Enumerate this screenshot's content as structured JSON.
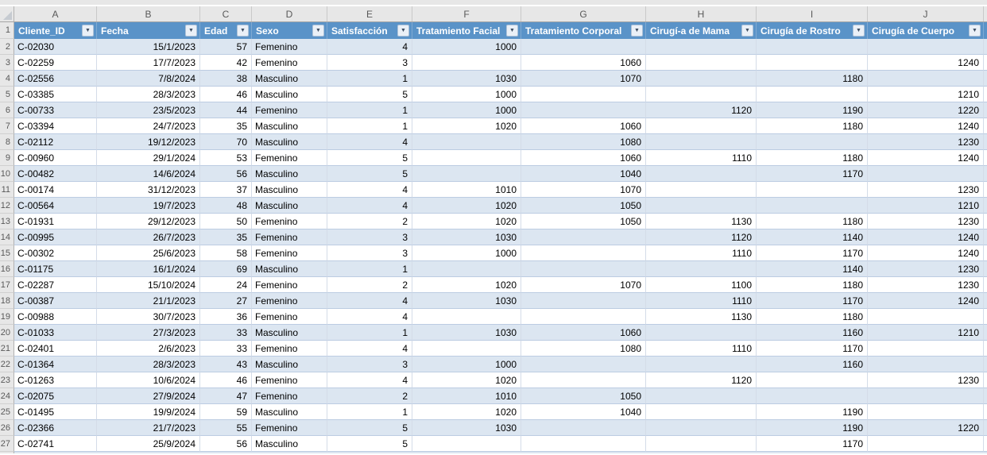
{
  "colors": {
    "header_fill": "#5a93c8",
    "band_fill": "#dce6f1",
    "chrome_gray": "#e7e7e7",
    "header_text": "#ffffff",
    "cell_text": "#000000"
  },
  "icons": {
    "filter_dropdown": "▼",
    "select_all_corner": "triangle"
  },
  "sheet": {
    "header_row_number": "1",
    "gutter_width": 18,
    "filler_width": 4,
    "columns": [
      {
        "letter": "A",
        "header": "Cliente_ID",
        "width": 104,
        "align": "left"
      },
      {
        "letter": "B",
        "header": "Fecha",
        "width": 130,
        "align": "right"
      },
      {
        "letter": "C",
        "header": "Edad",
        "width": 65,
        "align": "right"
      },
      {
        "letter": "D",
        "header": "Sexo",
        "width": 95,
        "align": "left"
      },
      {
        "letter": "E",
        "header": "Satisfacción",
        "width": 107,
        "align": "right"
      },
      {
        "letter": "F",
        "header": "Tratamiento Facial",
        "width": 137,
        "align": "right"
      },
      {
        "letter": "G",
        "header": "Tratamiento Corporal",
        "width": 157,
        "align": "right"
      },
      {
        "letter": "H",
        "header": "Cirugí-a de Mama",
        "width": 139,
        "align": "right"
      },
      {
        "letter": "I",
        "header": "Cirugía de Rostro",
        "width": 140,
        "align": "right"
      },
      {
        "letter": "J",
        "header": "Cirugía de Cuerpo",
        "width": 146,
        "align": "right"
      }
    ],
    "rows": [
      {
        "n": 2,
        "c": [
          "C-02030",
          "15/1/2023",
          "57",
          "Femenino",
          "4",
          "1000",
          "",
          "",
          "",
          ""
        ]
      },
      {
        "n": 3,
        "c": [
          "C-02259",
          "17/7/2023",
          "42",
          "Femenino",
          "3",
          "",
          "1060",
          "",
          "",
          "1240"
        ]
      },
      {
        "n": 4,
        "c": [
          "C-02556",
          "7/8/2024",
          "38",
          "Masculino",
          "1",
          "1030",
          "1070",
          "",
          "1180",
          ""
        ]
      },
      {
        "n": 5,
        "c": [
          "C-03385",
          "28/3/2023",
          "46",
          "Masculino",
          "5",
          "1000",
          "",
          "",
          "",
          "1210"
        ]
      },
      {
        "n": 6,
        "c": [
          "C-00733",
          "23/5/2023",
          "44",
          "Femenino",
          "1",
          "1000",
          "",
          "1120",
          "1190",
          "1220"
        ]
      },
      {
        "n": 7,
        "c": [
          "C-03394",
          "24/7/2023",
          "35",
          "Masculino",
          "1",
          "1020",
          "1060",
          "",
          "1180",
          "1240"
        ]
      },
      {
        "n": 8,
        "c": [
          "C-02112",
          "19/12/2023",
          "70",
          "Masculino",
          "4",
          "",
          "1080",
          "",
          "",
          "1230"
        ]
      },
      {
        "n": 9,
        "c": [
          "C-00960",
          "29/1/2024",
          "53",
          "Femenino",
          "5",
          "",
          "1060",
          "1110",
          "1180",
          "1240"
        ]
      },
      {
        "n": 10,
        "c": [
          "C-00482",
          "14/6/2024",
          "56",
          "Masculino",
          "5",
          "",
          "1040",
          "",
          "1170",
          ""
        ]
      },
      {
        "n": 11,
        "c": [
          "C-00174",
          "31/12/2023",
          "37",
          "Masculino",
          "4",
          "1010",
          "1070",
          "",
          "",
          "1230"
        ]
      },
      {
        "n": 12,
        "c": [
          "C-00564",
          "19/7/2023",
          "48",
          "Masculino",
          "4",
          "1020",
          "1050",
          "",
          "",
          "1210"
        ]
      },
      {
        "n": 13,
        "c": [
          "C-01931",
          "29/12/2023",
          "50",
          "Femenino",
          "2",
          "1020",
          "1050",
          "1130",
          "1180",
          "1230"
        ]
      },
      {
        "n": 14,
        "c": [
          "C-00995",
          "26/7/2023",
          "35",
          "Femenino",
          "3",
          "1030",
          "",
          "1120",
          "1140",
          "1240"
        ]
      },
      {
        "n": 15,
        "c": [
          "C-00302",
          "25/6/2023",
          "58",
          "Femenino",
          "3",
          "1000",
          "",
          "1110",
          "1170",
          "1240"
        ]
      },
      {
        "n": 16,
        "c": [
          "C-01175",
          "16/1/2024",
          "69",
          "Masculino",
          "1",
          "",
          "",
          "",
          "1140",
          "1230"
        ]
      },
      {
        "n": 17,
        "c": [
          "C-02287",
          "15/10/2024",
          "24",
          "Femenino",
          "2",
          "1020",
          "1070",
          "1100",
          "1180",
          "1230"
        ]
      },
      {
        "n": 18,
        "c": [
          "C-00387",
          "21/1/2023",
          "27",
          "Femenino",
          "4",
          "1030",
          "",
          "1110",
          "1170",
          "1240"
        ]
      },
      {
        "n": 19,
        "c": [
          "C-00988",
          "30/7/2023",
          "36",
          "Femenino",
          "4",
          "",
          "",
          "1130",
          "1180",
          ""
        ]
      },
      {
        "n": 20,
        "c": [
          "C-01033",
          "27/3/2023",
          "33",
          "Masculino",
          "1",
          "1030",
          "1060",
          "",
          "1160",
          "1210"
        ]
      },
      {
        "n": 21,
        "c": [
          "C-02401",
          "2/6/2023",
          "33",
          "Femenino",
          "4",
          "",
          "1080",
          "1110",
          "1170",
          ""
        ]
      },
      {
        "n": 22,
        "c": [
          "C-01364",
          "28/3/2023",
          "43",
          "Masculino",
          "3",
          "1000",
          "",
          "",
          "1160",
          ""
        ]
      },
      {
        "n": 23,
        "c": [
          "C-01263",
          "10/6/2024",
          "46",
          "Femenino",
          "4",
          "1020",
          "",
          "1120",
          "",
          "1230"
        ]
      },
      {
        "n": 24,
        "c": [
          "C-02075",
          "27/9/2024",
          "47",
          "Femenino",
          "2",
          "1010",
          "1050",
          "",
          "",
          ""
        ]
      },
      {
        "n": 25,
        "c": [
          "C-01495",
          "19/9/2024",
          "59",
          "Masculino",
          "1",
          "1020",
          "1040",
          "",
          "1190",
          ""
        ]
      },
      {
        "n": 26,
        "c": [
          "C-02366",
          "21/7/2023",
          "55",
          "Femenino",
          "5",
          "1030",
          "",
          "",
          "1190",
          "1220"
        ]
      },
      {
        "n": 27,
        "c": [
          "C-02741",
          "25/9/2024",
          "56",
          "Masculino",
          "5",
          "",
          "",
          "",
          "1170",
          ""
        ]
      }
    ]
  }
}
